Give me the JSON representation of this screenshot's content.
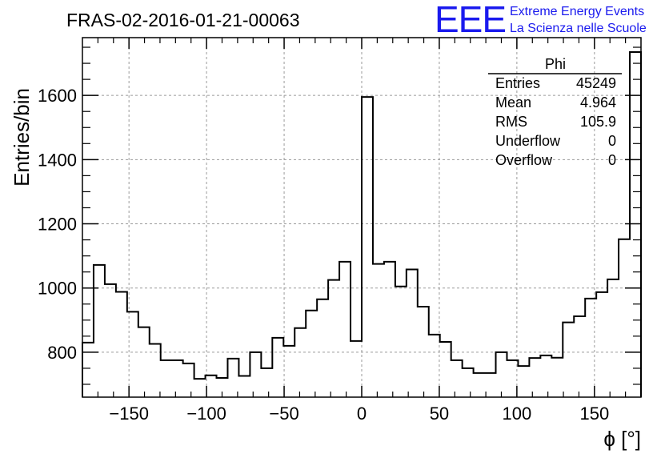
{
  "chart_data": {
    "type": "bar",
    "title": "FRAS-02-2016-01-21-00063",
    "xlabel": "ϕ [°]",
    "ylabel": "Entries/bin",
    "xlim": [
      -180,
      180
    ],
    "ylim": [
      660,
      1780
    ],
    "grid": true,
    "bin_width": 7.2,
    "x_ticks": [
      -150,
      -100,
      -50,
      0,
      50,
      100,
      150
    ],
    "x_tick_labels": [
      "−150",
      "−100",
      "−50",
      "0",
      "50",
      "100",
      "150"
    ],
    "y_ticks": [
      800,
      1000,
      1200,
      1400,
      1600
    ],
    "y_tick_labels": [
      "800",
      "1000",
      "1200",
      "1400",
      "1600"
    ],
    "values": [
      830,
      1072,
      1012,
      988,
      926,
      878,
      826,
      775,
      775,
      765,
      717,
      728,
      720,
      780,
      726,
      800,
      750,
      845,
      820,
      875,
      930,
      965,
      1025,
      1082,
      835,
      1595,
      1075,
      1082,
      1005,
      1058,
      942,
      855,
      832,
      775,
      750,
      735,
      735,
      800,
      775,
      757,
      782,
      790,
      783,
      893,
      912,
      967,
      987,
      1027,
      1152,
      1735
    ],
    "stats": {
      "name": "Phi",
      "rows": [
        {
          "label": "Entries",
          "value": "45249"
        },
        {
          "label": "Mean",
          "value": "4.964"
        },
        {
          "label": "RMS",
          "value": "105.9"
        },
        {
          "label": "Underflow",
          "value": "0"
        },
        {
          "label": "Overflow",
          "value": "0"
        }
      ]
    },
    "logo": {
      "mark": "EEE",
      "line1": "Extreme Energy Events",
      "line2": "La Scienza nelle Scuole"
    }
  }
}
